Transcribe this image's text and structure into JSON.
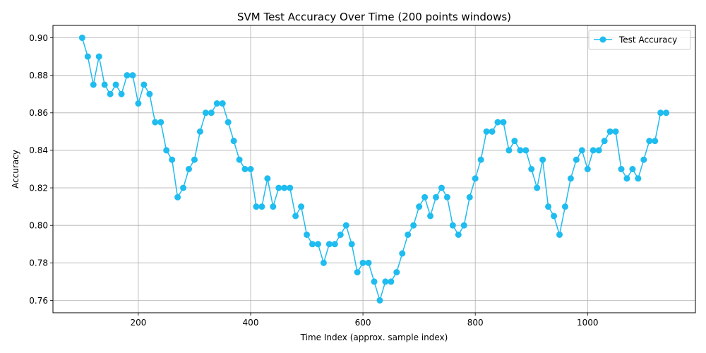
{
  "chart_data": {
    "type": "line",
    "title": "SVM Test Accuracy Over Time (200 points windows)",
    "xlabel": "Time Index (approx. sample index)",
    "ylabel": "Accuracy",
    "xlim": [
      48,
      1192
    ],
    "ylim": [
      0.7534,
      0.9066
    ],
    "xticks": [
      200,
      400,
      600,
      800,
      1000
    ],
    "yticks": [
      0.76,
      0.78,
      0.8,
      0.82,
      0.84,
      0.86,
      0.88,
      0.9
    ],
    "ytick_labels": [
      "0.76",
      "0.78",
      "0.80",
      "0.82",
      "0.84",
      "0.86",
      "0.88",
      "0.90"
    ],
    "grid": true,
    "legend_position": "top-right",
    "series": [
      {
        "name": "Test Accuracy",
        "color": "#1fbcf0",
        "marker": "circle",
        "x": [
          100,
          110,
          120,
          130,
          140,
          150,
          160,
          170,
          180,
          190,
          200,
          210,
          220,
          230,
          240,
          250,
          260,
          270,
          280,
          290,
          300,
          310,
          320,
          330,
          340,
          350,
          360,
          370,
          380,
          390,
          400,
          410,
          420,
          430,
          440,
          450,
          460,
          470,
          480,
          490,
          500,
          510,
          520,
          530,
          540,
          550,
          560,
          570,
          580,
          590,
          600,
          610,
          620,
          630,
          640,
          650,
          660,
          670,
          680,
          690,
          700,
          710,
          720,
          730,
          740,
          750,
          760,
          770,
          780,
          790,
          800,
          810,
          820,
          830,
          840,
          850,
          860,
          870,
          880,
          890,
          900,
          910,
          920,
          930,
          940,
          950,
          960,
          970,
          980,
          990,
          1000,
          1010,
          1020,
          1030,
          1040,
          1050,
          1060,
          1070,
          1080,
          1090,
          1100,
          1110,
          1120,
          1130,
          1140
        ],
        "y": [
          0.9,
          0.89,
          0.875,
          0.89,
          0.875,
          0.87,
          0.875,
          0.87,
          0.88,
          0.88,
          0.865,
          0.875,
          0.87,
          0.855,
          0.855,
          0.84,
          0.835,
          0.815,
          0.82,
          0.83,
          0.835,
          0.85,
          0.86,
          0.86,
          0.865,
          0.865,
          0.855,
          0.845,
          0.835,
          0.83,
          0.83,
          0.81,
          0.81,
          0.825,
          0.81,
          0.82,
          0.82,
          0.82,
          0.805,
          0.81,
          0.795,
          0.79,
          0.79,
          0.78,
          0.79,
          0.79,
          0.795,
          0.8,
          0.79,
          0.775,
          0.78,
          0.78,
          0.77,
          0.76,
          0.77,
          0.77,
          0.775,
          0.785,
          0.795,
          0.8,
          0.81,
          0.815,
          0.805,
          0.815,
          0.82,
          0.815,
          0.8,
          0.795,
          0.8,
          0.815,
          0.825,
          0.835,
          0.85,
          0.85,
          0.855,
          0.855,
          0.84,
          0.845,
          0.84,
          0.84,
          0.83,
          0.82,
          0.835,
          0.81,
          0.805,
          0.795,
          0.81,
          0.825,
          0.835,
          0.84,
          0.83,
          0.84,
          0.84,
          0.845,
          0.85,
          0.85,
          0.83,
          0.825,
          0.83,
          0.825,
          0.835,
          0.845,
          0.845,
          0.86,
          0.86
        ]
      }
    ]
  }
}
